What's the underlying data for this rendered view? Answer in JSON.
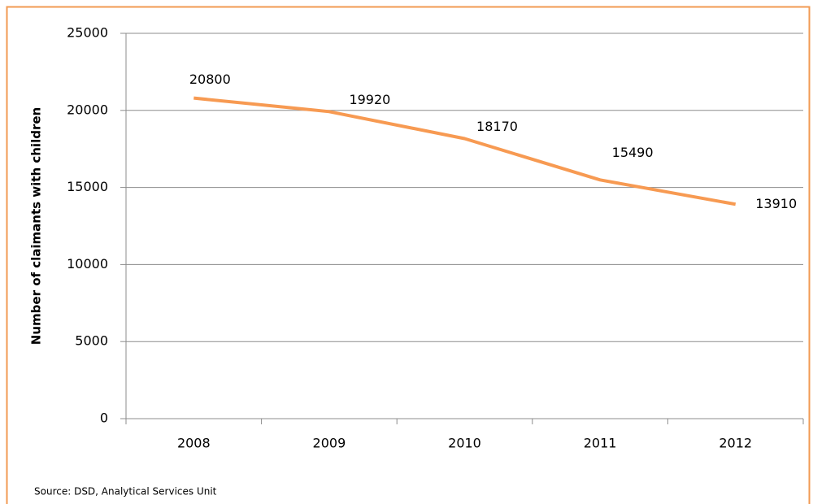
{
  "chart_data": {
    "type": "line",
    "y_label": "Number of claimants with children",
    "source": "Source: DSD, Analytical Services Unit",
    "categories": [
      "2008",
      "2009",
      "2010",
      "2011",
      "2012"
    ],
    "values": [
      20800,
      19920,
      18170,
      15490,
      13910
    ],
    "color": "#f79a52",
    "ylim": [
      0,
      25000
    ],
    "yticks": [
      0,
      5000,
      10000,
      15000,
      20000,
      25000
    ],
    "grid": true,
    "data_labels": true
  }
}
